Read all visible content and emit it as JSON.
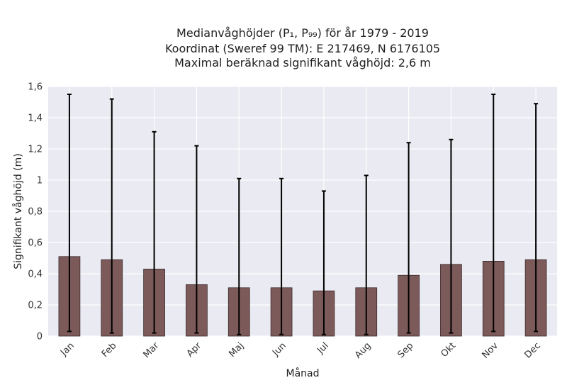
{
  "chart_data": {
    "type": "bar",
    "title_lines": [
      "Medianvåghöjder (P₁, P₉₉) för år 1979 - 2019",
      "Koordinat (Sweref 99 TM): E 217469, N 6176105",
      "Maximal beräknad signifikant våghöjd: 2,6 m"
    ],
    "xlabel": "Månad",
    "ylabel": "Signifikant våghöjd (m)",
    "categories": [
      "Jan",
      "Feb",
      "Mar",
      "Apr",
      "Maj",
      "Jun",
      "Jul",
      "Aug",
      "Sep",
      "Okt",
      "Nov",
      "Dec"
    ],
    "values": [
      0.51,
      0.49,
      0.43,
      0.33,
      0.31,
      0.31,
      0.29,
      0.31,
      0.39,
      0.46,
      0.48,
      0.49
    ],
    "p1": [
      0.03,
      0.02,
      0.02,
      0.02,
      0.01,
      0.01,
      0.01,
      0.01,
      0.02,
      0.02,
      0.03,
      0.03
    ],
    "p99": [
      1.55,
      1.52,
      1.31,
      1.22,
      1.01,
      1.01,
      0.93,
      1.03,
      1.24,
      1.26,
      1.55,
      1.49
    ],
    "ylim": [
      0,
      1.6
    ],
    "yticks": [
      0,
      0.2,
      0.4,
      0.6,
      0.8,
      1.0,
      1.2,
      1.4,
      1.6
    ],
    "ytick_labels": [
      "0",
      "0,2",
      "0,4",
      "0,6",
      "0,8",
      "1",
      "1,2",
      "1,4",
      "1,6"
    ],
    "grid": true,
    "colors": {
      "bar": "#7d5a5a",
      "bar_edge": "#3a2a2a",
      "errorbar": "#000000",
      "plot_bg": "#eaeaf2",
      "grid": "#ffffff"
    }
  }
}
